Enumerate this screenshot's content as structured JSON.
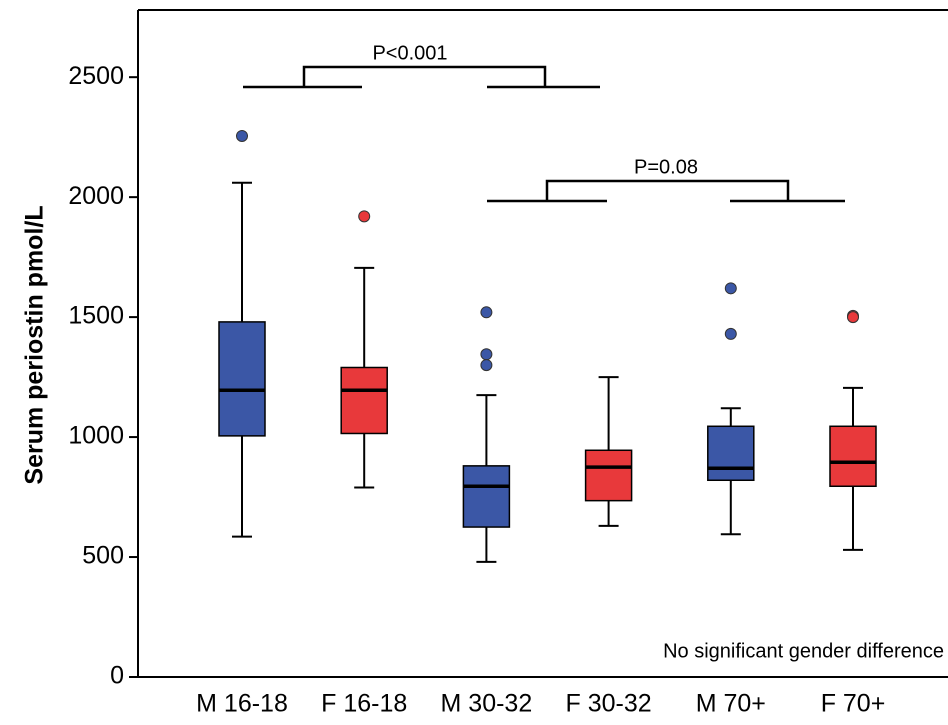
{
  "chart_data": {
    "type": "box",
    "y_label": "Serum periostin pmol/L",
    "ylim": [
      0,
      2780
    ],
    "yticks": [
      0,
      500,
      1000,
      1500,
      2000,
      2500
    ],
    "categories": [
      "M 16-18",
      "F 16-18",
      "M 30-32",
      "F 30-32",
      "M 70+",
      "F 70+"
    ],
    "boxes": [
      {
        "color": "#3b57a6",
        "whisker_low": 585,
        "q1": 1005,
        "median": 1195,
        "q3": 1480,
        "whisker_high": 2060,
        "outliers": [
          2255
        ]
      },
      {
        "color": "#e8393b",
        "whisker_low": 790,
        "q1": 1015,
        "median": 1195,
        "q3": 1290,
        "whisker_high": 1705,
        "outliers": [
          1920
        ]
      },
      {
        "color": "#3b57a6",
        "whisker_low": 480,
        "q1": 625,
        "median": 795,
        "q3": 880,
        "whisker_high": 1175,
        "outliers": [
          1520,
          1345,
          1300
        ]
      },
      {
        "color": "#e8393b",
        "whisker_low": 630,
        "q1": 735,
        "median": 875,
        "q3": 945,
        "whisker_high": 1250,
        "outliers": []
      },
      {
        "color": "#3b57a6",
        "whisker_low": 595,
        "q1": 820,
        "median": 870,
        "q3": 1045,
        "whisker_high": 1120,
        "outliers": [
          1620,
          1430
        ]
      },
      {
        "color": "#e8393b",
        "whisker_low": 530,
        "q1": 795,
        "median": 895,
        "q3": 1045,
        "whisker_high": 1205,
        "outliers": [
          1505,
          1500
        ]
      }
    ],
    "annotations": [
      "P<0.001",
      "P=0.08",
      "No significant gender difference"
    ]
  }
}
